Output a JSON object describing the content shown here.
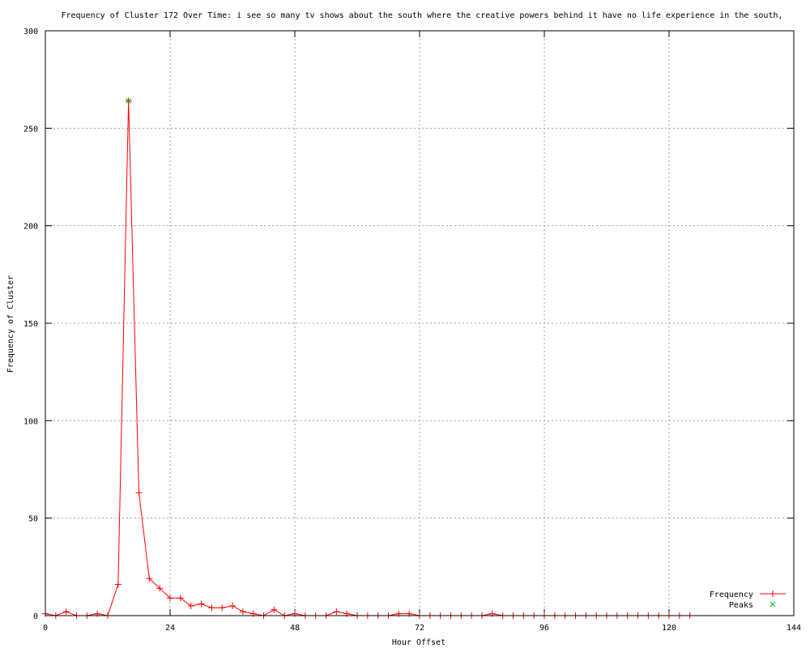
{
  "chart_data": {
    "type": "line",
    "title": "Frequency of Cluster 172 Over Time: i see so many tv shows about the south where the creative powers behind it have no life experience in the south,",
    "xlabel": "Hour Offset",
    "ylabel": "Frequency of Cluster",
    "xlim": [
      0,
      144
    ],
    "ylim": [
      0,
      300
    ],
    "xticks": [
      0,
      24,
      48,
      72,
      96,
      120,
      144
    ],
    "yticks": [
      0,
      50,
      100,
      150,
      200,
      250,
      300
    ],
    "grid": true,
    "legend_position": "bottom-right",
    "series": [
      {
        "name": "Frequency",
        "color": "#ff0000",
        "x": [
          0,
          2,
          4,
          6,
          8,
          10,
          12,
          14,
          16,
          18,
          20,
          22,
          24,
          26,
          28,
          30,
          32,
          34,
          36,
          38,
          40,
          42,
          44,
          46,
          48,
          50,
          52,
          54,
          56,
          58,
          60,
          62,
          64,
          66,
          68,
          70,
          72,
          74,
          76,
          78,
          80,
          82,
          84,
          86,
          88,
          90,
          92,
          94,
          96,
          98,
          100,
          102,
          104,
          106,
          108,
          110,
          112,
          114,
          116,
          118,
          120,
          122,
          124
        ],
        "y": [
          1,
          0,
          2,
          0,
          0,
          1,
          0,
          16,
          264,
          63,
          19,
          14,
          9,
          9,
          5,
          6,
          4,
          4,
          5,
          2,
          1,
          0,
          3,
          0,
          1,
          0,
          0,
          0,
          2,
          1,
          0,
          0,
          0,
          0,
          1,
          1,
          0,
          0,
          0,
          0,
          0,
          0,
          0,
          1,
          0,
          0,
          0,
          0,
          0,
          0,
          0,
          0,
          0,
          0,
          0,
          0,
          0,
          0,
          0,
          0,
          0,
          0,
          0
        ]
      },
      {
        "name": "Peaks",
        "color": "#00c000",
        "x": [
          16
        ],
        "y": [
          264
        ]
      }
    ]
  }
}
